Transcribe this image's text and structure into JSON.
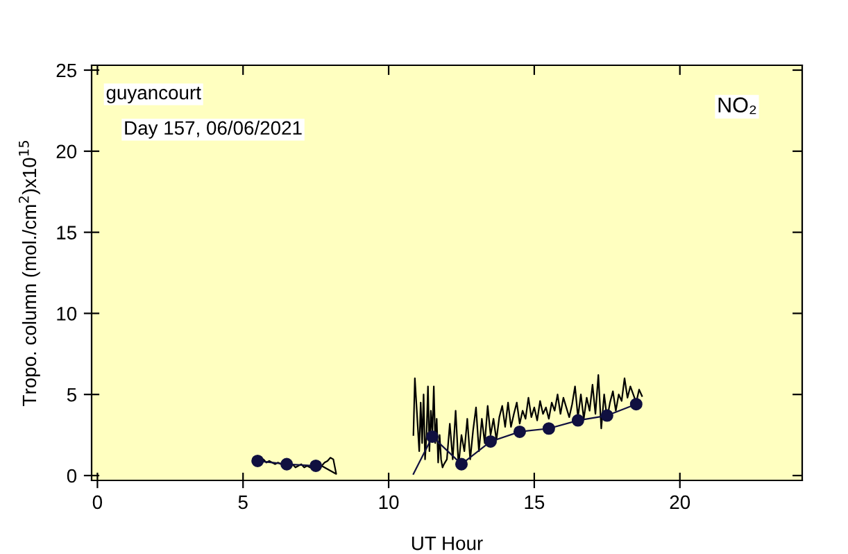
{
  "chart_data": {
    "type": "line",
    "xlabel": "UT Hour",
    "ylabel": "Tropo. column (mol./cm$^{2}$)x10$^{15}$",
    "annotations": [
      "guyancourt",
      "Day 157, 06/06/2021",
      "NO₂"
    ],
    "xlim": [
      -0.2,
      24.2
    ],
    "ylim": [
      -0.3,
      25.3
    ],
    "xticks": [
      0,
      5,
      10,
      15,
      20
    ],
    "yticks": [
      0,
      5,
      10,
      15,
      20,
      25
    ],
    "grid": false,
    "legend": false,
    "series": [
      {
        "color": "#000000",
        "marker": "none",
        "x": [
          5.4,
          5.5,
          5.6,
          5.7,
          5.8,
          5.9,
          6.0,
          6.1,
          6.2,
          6.3,
          6.4,
          6.5,
          6.6,
          6.7,
          6.8,
          6.9,
          7.0,
          7.1,
          7.2,
          7.3,
          7.4,
          7.5,
          7.6,
          7.7,
          7.8,
          7.9,
          8.0,
          8.1,
          8.2,
          7.7
        ],
        "values": [
          1.1,
          1.0,
          0.9,
          1.0,
          0.8,
          0.9,
          0.8,
          0.7,
          0.8,
          0.7,
          0.6,
          0.7,
          0.6,
          0.7,
          0.5,
          0.6,
          0.7,
          0.5,
          0.6,
          0.5,
          0.6,
          0.6,
          0.5,
          0.6,
          0.8,
          0.9,
          1.1,
          1.0,
          0.1,
          0.6
        ]
      },
      {
        "color": "#000000",
        "marker": "none",
        "x": [
          10.85,
          10.9,
          11.0,
          11.05,
          11.1,
          11.15,
          11.2,
          11.25,
          11.3,
          11.35,
          11.4,
          11.45,
          11.5,
          11.55,
          11.6,
          11.65,
          11.7,
          11.75,
          11.8,
          11.85,
          11.9,
          12.0,
          12.1,
          12.2,
          12.3,
          12.4,
          12.5,
          12.6,
          12.7,
          12.8,
          12.9,
          13.0,
          13.1,
          13.2,
          13.3,
          13.4,
          13.5,
          13.6,
          13.7,
          13.8,
          13.9,
          14.0,
          14.1,
          14.2,
          14.3,
          14.4,
          14.5,
          14.6,
          14.7,
          14.8,
          14.9,
          15.0,
          15.1,
          15.2,
          15.3,
          15.4,
          15.5,
          15.6,
          15.7,
          15.8,
          15.9,
          16.0,
          16.1,
          16.2,
          16.3,
          16.4,
          16.5,
          16.6,
          16.7,
          16.8,
          16.9,
          17.0,
          17.1,
          17.2,
          17.3,
          17.4,
          17.5,
          17.6,
          17.7,
          17.8,
          17.9,
          18.0,
          18.1,
          18.2,
          18.3,
          18.4,
          18.5,
          18.6,
          18.7
        ],
        "values": [
          2.5,
          6.0,
          3.0,
          1.5,
          4.5,
          2.0,
          5.0,
          1.0,
          2.5,
          5.5,
          1.5,
          4.0,
          2.5,
          5.5,
          2.0,
          3.5,
          0.8,
          2.5,
          1.0,
          0.5,
          0.7,
          1.0,
          3.2,
          1.0,
          4.0,
          0.6,
          2.5,
          1.5,
          3.5,
          1.0,
          2.8,
          4.2,
          1.5,
          3.5,
          2.0,
          4.3,
          2.5,
          3.5,
          2.2,
          3.6,
          4.3,
          3.0,
          4.5,
          3.0,
          3.8,
          4.5,
          3.2,
          4.0,
          3.5,
          4.8,
          3.6,
          4.2,
          3.4,
          4.6,
          3.8,
          4.2,
          3.5,
          4.5,
          4.0,
          5.0,
          3.8,
          4.8,
          4.2,
          3.6,
          4.4,
          5.5,
          3.6,
          5.0,
          3.5,
          4.8,
          4.0,
          5.6,
          3.8,
          6.2,
          2.9,
          5.0,
          3.5,
          4.5,
          5.2,
          4.0,
          5.0,
          4.6,
          6.0,
          4.8,
          5.5,
          5.0,
          4.5,
          5.3,
          4.9
        ]
      },
      {
        "color": "#101040",
        "marker": "circle",
        "x": [
          10.85,
          11.5,
          12.5,
          13.5,
          14.5,
          15.5,
          16.5,
          17.5,
          18.5
        ],
        "values": [
          0.1,
          2.4,
          0.7,
          2.1,
          2.7,
          2.9,
          3.4,
          3.7,
          4.4
        ]
      },
      {
        "color": "#101040",
        "marker": "circle",
        "x": [
          5.5,
          6.5,
          7.5
        ],
        "values": [
          0.9,
          0.7,
          0.6
        ]
      }
    ]
  }
}
